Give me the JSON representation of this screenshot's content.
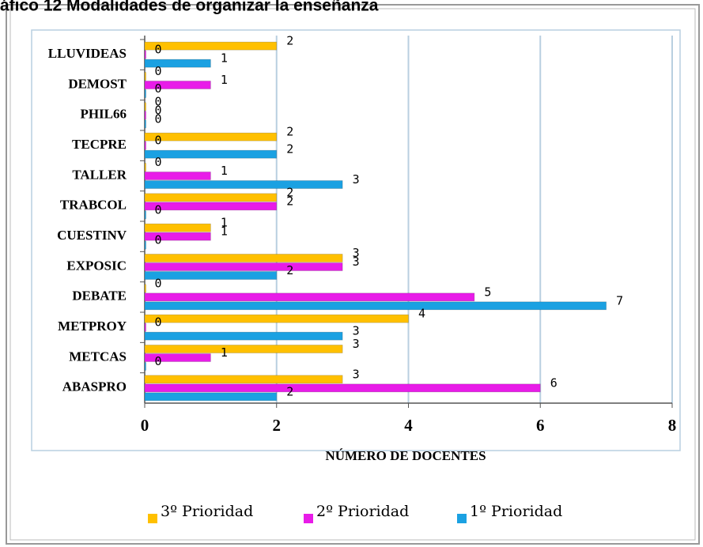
{
  "chart_data": {
    "type": "bar",
    "orientation": "horizontal",
    "title": "áfico 12 Modalidades de organizar la enseñanza",
    "x_label": "NÚMERO DE DOCENTES",
    "categories": [
      "LLUVIDEAS",
      "DEMOST",
      "PHIL66",
      "TECPRE",
      "TALLER",
      "TRABCOL",
      "CUESTINV",
      "EXPOSIC",
      "DEBATE",
      "METPROY",
      "METCAS",
      "ABASPRO"
    ],
    "series": [
      {
        "name": "3º Prioridad",
        "color": "#FFC000",
        "values": [
          2,
          0,
          0,
          2,
          0,
          2,
          1,
          3,
          0,
          4,
          3,
          3
        ]
      },
      {
        "name": "2º Prioridad",
        "color": "#E81CE8",
        "values": [
          0,
          1,
          0,
          0,
          1,
          2,
          1,
          3,
          5,
          0,
          1,
          6
        ]
      },
      {
        "name": "1º Prioridad",
        "color": "#1BA1E2",
        "values": [
          1,
          0,
          0,
          2,
          3,
          0,
          0,
          2,
          7,
          3,
          0,
          2
        ]
      }
    ],
    "xlim": [
      0,
      8
    ],
    "xticks": [
      0,
      2,
      4,
      6,
      8
    ],
    "grid": true,
    "legend": "bottom"
  }
}
